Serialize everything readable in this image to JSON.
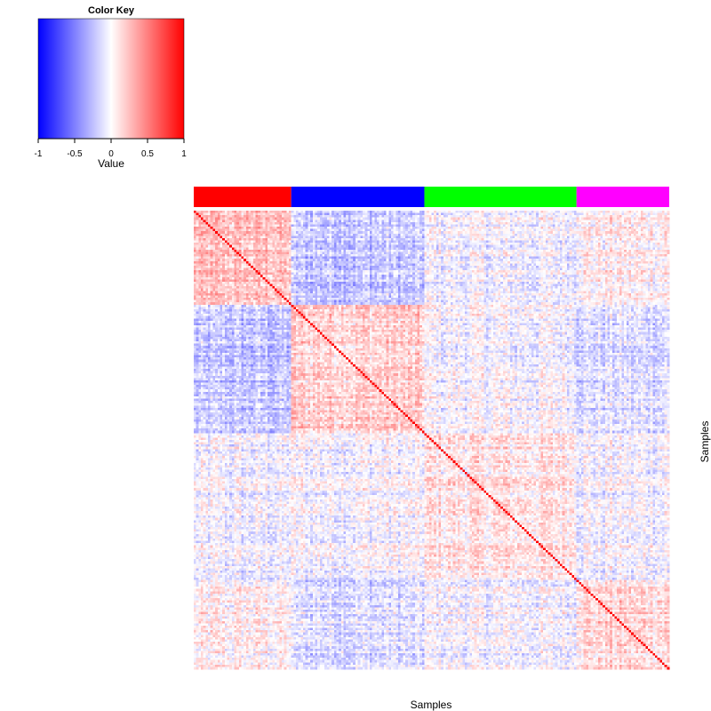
{
  "chart_data": {
    "type": "heatmap",
    "xlabel": "Samples",
    "ylabel": "Samples",
    "color_key": {
      "title": "Color Key",
      "label": "Value",
      "range": [
        -1,
        1
      ],
      "ticks": [
        "-1",
        "-0.5",
        "0",
        "0.5",
        "1"
      ],
      "colors": [
        "#0000ff",
        "#ffffff",
        "#ff0000"
      ]
    },
    "n_samples": 200,
    "groups": [
      {
        "color": "#ff0000",
        "count": 41
      },
      {
        "color": "#0000ff",
        "count": 56
      },
      {
        "color": "#00ff00",
        "count": 64
      },
      {
        "color": "#ff00ff",
        "count": 39
      }
    ],
    "diagonal_value": 1,
    "block_means": [
      [
        0.22,
        -0.22,
        -0.05,
        0.05
      ],
      [
        -0.22,
        0.18,
        -0.02,
        -0.12
      ],
      [
        -0.05,
        -0.02,
        0.1,
        -0.03
      ],
      [
        0.05,
        -0.12,
        -0.03,
        0.15
      ]
    ]
  }
}
